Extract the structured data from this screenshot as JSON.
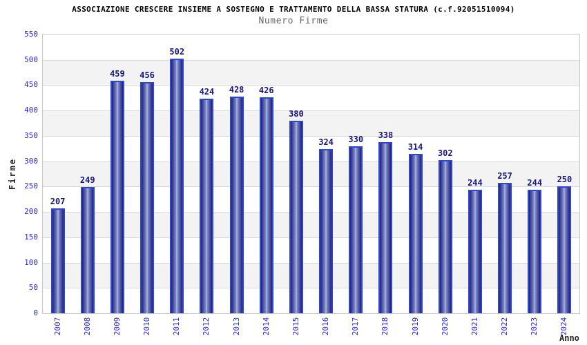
{
  "chart_data": {
    "type": "bar",
    "title": "ASSOCIAZIONE CRESCERE INSIEME A SOSTEGNO E TRATTAMENTO DELLA BASSA STATURA (c.f.92051510094)",
    "subtitle": "Numero Firme",
    "xlabel": "Anno",
    "ylabel": "Firme",
    "categories": [
      "2007",
      "2008",
      "2009",
      "2010",
      "2011",
      "2012",
      "2013",
      "2014",
      "2015",
      "2016",
      "2017",
      "2018",
      "2019",
      "2020",
      "2021",
      "2022",
      "2023",
      "2024"
    ],
    "values": [
      207,
      249,
      459,
      456,
      502,
      424,
      428,
      426,
      380,
      324,
      330,
      338,
      314,
      302,
      244,
      257,
      244,
      250
    ],
    "ylim": [
      0,
      550
    ],
    "yticks": [
      0,
      50,
      100,
      150,
      200,
      250,
      300,
      350,
      400,
      450,
      500,
      550
    ],
    "grid": true,
    "alternating_bands": true,
    "legend_position": "none",
    "bar_value_labels": true
  },
  "colors": {
    "background": "#ffffff",
    "title": "#000000",
    "subtitle": "#646464",
    "axis_name": "#222222",
    "tick_label": "#2727d8",
    "category_label": "#2727d8",
    "value_label": "#16167d",
    "bar_border": "#2c46db",
    "bar_dark": "#202078",
    "bar_mid": "#7d88c8",
    "bar_light": "#b2bce4",
    "band_gray": "#f3f3f3",
    "band_white": "#ffffff",
    "gridline": "#d8d8d8",
    "plot_border": "#c8c8c8"
  }
}
